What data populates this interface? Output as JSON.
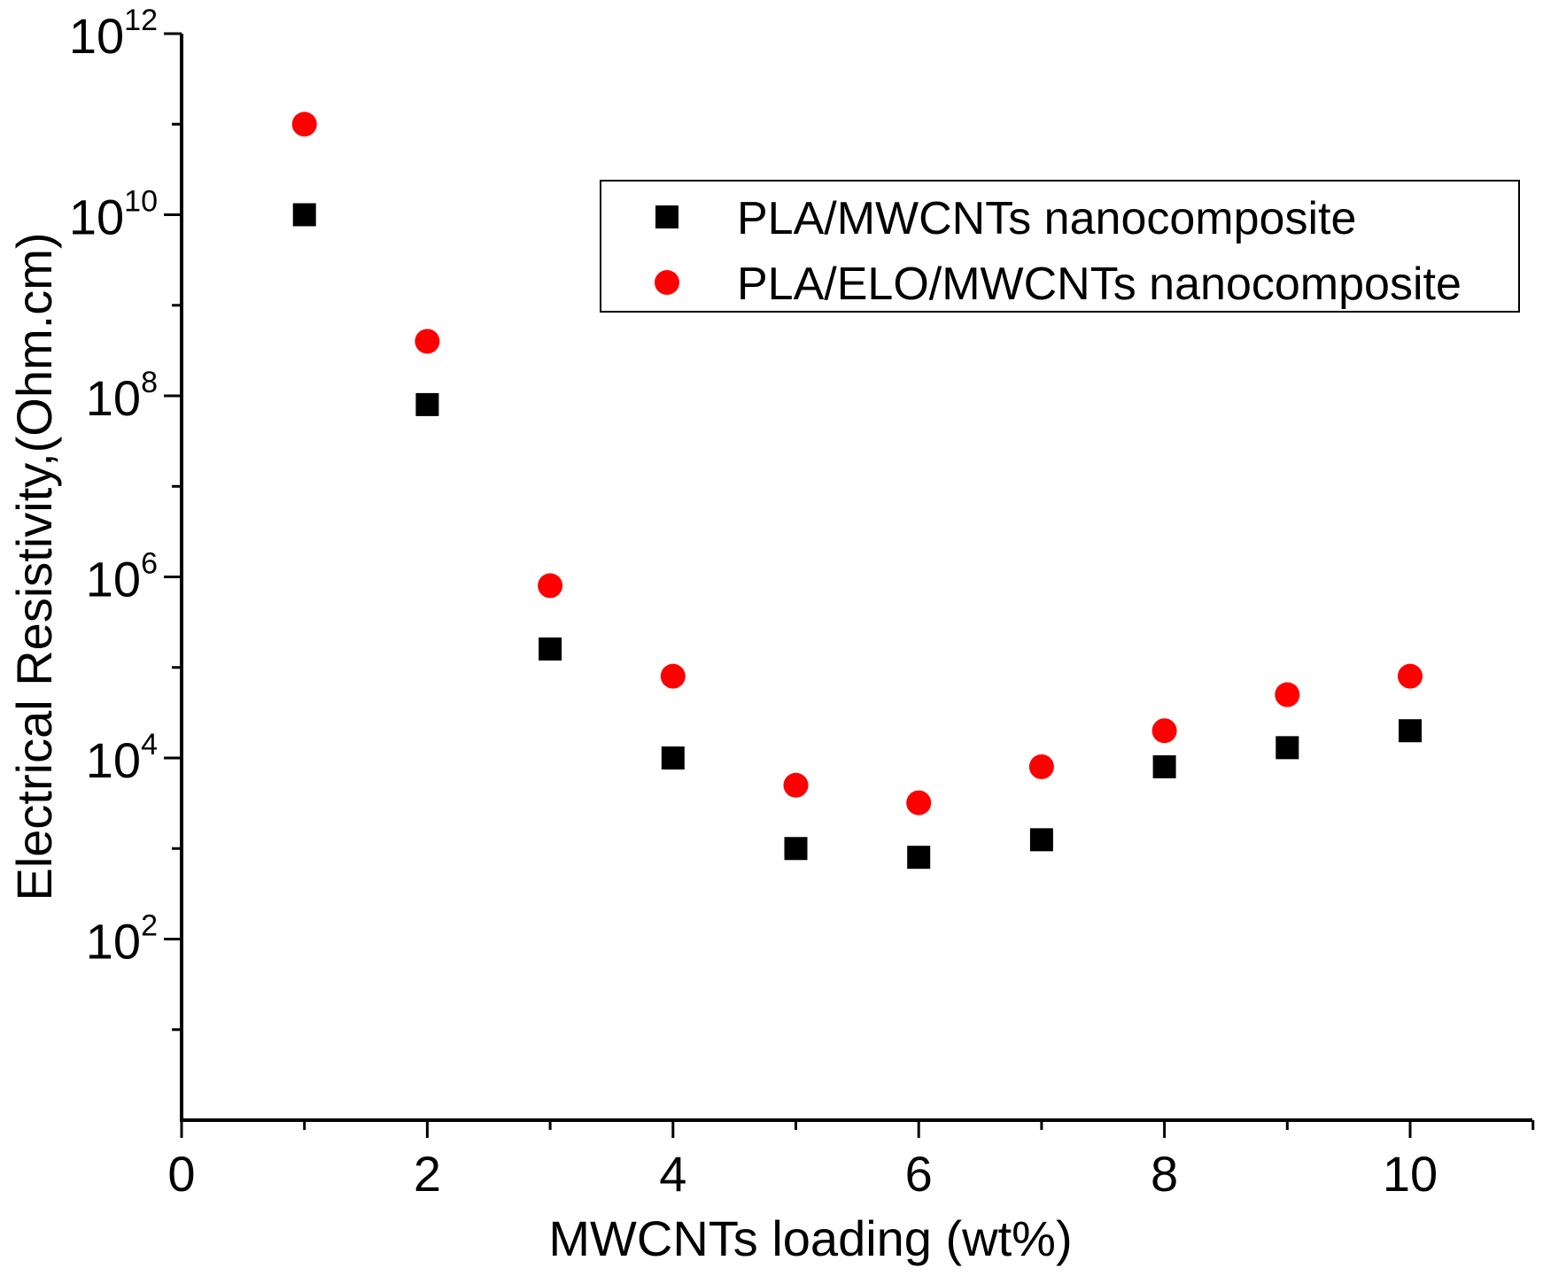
{
  "chart_data": {
    "type": "scatter",
    "title": "",
    "xlabel": "MWCNTs loading (wt%)",
    "ylabel": "Electrical Resistivity,(Ohm.cm)",
    "xlim": [
      0,
      11
    ],
    "ylim": [
      1,
      1000000000000
    ],
    "yscale": "log",
    "xticks": [
      0,
      2,
      4,
      6,
      8,
      10
    ],
    "yticks": [
      {
        "base": "10",
        "exp": "2",
        "value": 100
      },
      {
        "base": "10",
        "exp": "4",
        "value": 10000
      },
      {
        "base": "10",
        "exp": "6",
        "value": 1000000
      },
      {
        "base": "10",
        "exp": "8",
        "value": 100000000
      },
      {
        "base": "10",
        "exp": "10",
        "value": 10000000000
      },
      {
        "base": "10",
        "exp": "12",
        "value": 1000000000000
      }
    ],
    "grid": false,
    "legend_position": "top-right",
    "series": [
      {
        "name": "PLA/MWCNTs nanocomposite",
        "marker": "square",
        "color": "#000000",
        "x": [
          1,
          2,
          3,
          4,
          5,
          6,
          7,
          8,
          9,
          10
        ],
        "y": [
          10000000000,
          80000000,
          160000,
          10000,
          1000,
          800,
          1250,
          8000,
          13000,
          20000
        ]
      },
      {
        "name": "PLA/ELO/MWCNTs nanocomposite",
        "marker": "circle",
        "color": "#ff0000",
        "x": [
          1,
          2,
          3,
          4,
          5,
          6,
          7,
          8,
          9,
          10
        ],
        "y": [
          100000000000,
          400000000,
          800000,
          80000,
          5000,
          3200,
          8000,
          20000,
          50000,
          80000
        ]
      }
    ]
  }
}
